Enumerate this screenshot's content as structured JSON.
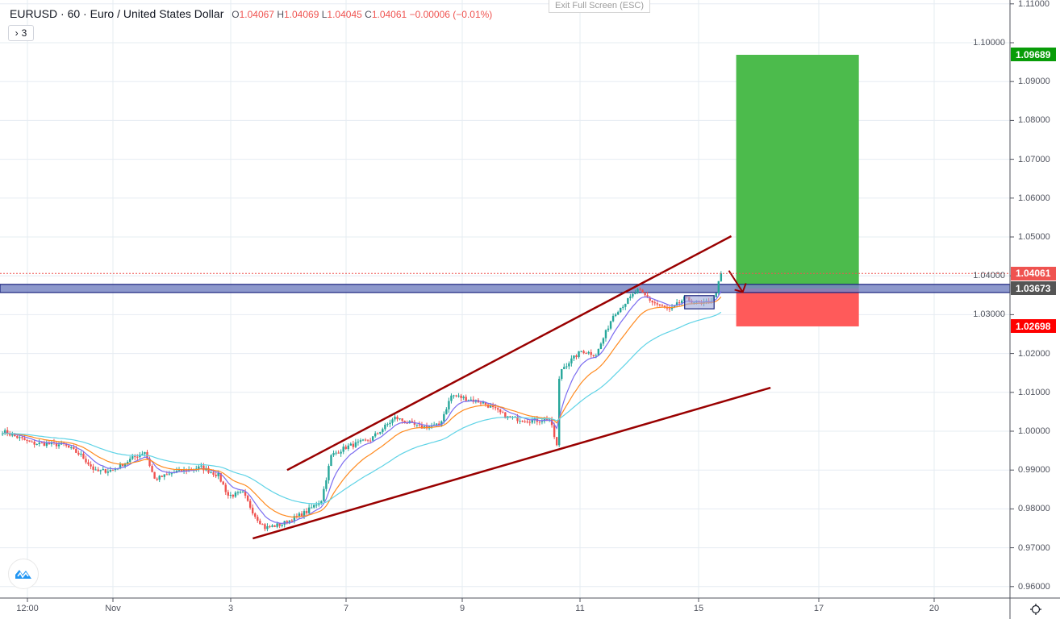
{
  "header": {
    "symbol": "EURUSD",
    "interval": "60",
    "description": "Euro / United States Dollar",
    "title_sep": "·",
    "ohlc": {
      "o_label": "O",
      "o": "1.04067",
      "h_label": "H",
      "h": "1.04069",
      "l_label": "L",
      "l": "1.04045",
      "c_label": "C",
      "c": "1.04061",
      "change": "−0.00006 (−0.01%)"
    },
    "indicators_toggle": {
      "icon": "chevron-right-icon",
      "count": "3"
    }
  },
  "exit_fullscreen_label": "Exit Full Screen (ESC)",
  "colors": {
    "up": "#26a69a",
    "down": "#ef5350",
    "ma_fast": "#7b6cf0",
    "ma_mid": "#ff8a1f",
    "ma_slow": "#5fd3e6",
    "trendline": "#990000",
    "zone_fill": "#7986c3",
    "zone_border": "#1a237e",
    "target": "#4cbb4c",
    "stop": "#ff5a5a",
    "target_label": "#089c08",
    "stop_label": "#ff0000",
    "last_price_label": "#ef5350",
    "zone_label": "#555555"
  },
  "chart_data": {
    "type": "candlestick",
    "symbol": "EURUSD",
    "interval": "60",
    "ylim": [
      0.955,
      1.113
    ],
    "y_ticks": [
      "1.11000",
      "1.10000",
      "1.09000",
      "1.08000",
      "1.07000",
      "1.06000",
      "1.05000",
      "1.04000",
      "1.03000",
      "1.02000",
      "1.01000",
      "1.00000",
      "0.99000",
      "0.98000",
      "0.97000",
      "0.96000"
    ],
    "x_ticks": [
      "12:00",
      "Nov",
      "3",
      "7",
      "9",
      "11",
      "15",
      "17",
      "20"
    ],
    "grid": true,
    "price_path_approx": [
      [
        "10-28 03:00",
        1.0
      ],
      [
        "10-28 15:00",
        0.9969
      ],
      [
        "10-31 04:00",
        0.9965
      ],
      [
        "10-31 11:00",
        0.9938
      ],
      [
        "10-31 17:00",
        0.9896
      ],
      [
        "11-01 00:00",
        0.99
      ],
      [
        "11-01 07:00",
        0.9927
      ],
      [
        "11-01 13:00",
        0.9948
      ],
      [
        "11-01 17:00",
        0.9876
      ],
      [
        "11-02 02:00",
        0.9896
      ],
      [
        "11-02 12:00",
        0.9907
      ],
      [
        "11-02 19:00",
        0.9886
      ],
      [
        "11-02 23:00",
        0.9834
      ],
      [
        "11-03 05:00",
        0.984
      ],
      [
        "11-03 10:00",
        0.9782
      ],
      [
        "11-03 14:00",
        0.9751
      ],
      [
        "11-03 21:00",
        0.9761
      ],
      [
        "11-04 07:00",
        0.9793
      ],
      [
        "11-04 13:00",
        0.9824
      ],
      [
        "11-04 17:00",
        0.9938
      ],
      [
        "11-04 23:00",
        0.9959
      ],
      [
        "11-07 09:00",
        0.9979
      ],
      [
        "11-07 19:00",
        1.0035
      ],
      [
        "11-08 05:00",
        1.001
      ],
      [
        "11-08 13:00",
        1.0015
      ],
      [
        "11-08 18:00",
        1.0093
      ],
      [
        "11-09 07:00",
        1.0073
      ],
      [
        "11-09 17:00",
        1.0035
      ],
      [
        "11-10 03:00",
        1.0027
      ],
      [
        "11-10 10:00",
        1.0031
      ],
      [
        "11-10 13:00",
        0.9959
      ],
      [
        "11-10 14:00",
        1.0156
      ],
      [
        "11-10 23:00",
        1.0207
      ],
      [
        "11-11 05:00",
        1.0197
      ],
      [
        "11-11 12:00",
        1.0301
      ],
      [
        "11-11 22:00",
        1.0363
      ],
      [
        "11-14 04:00",
        1.0332
      ],
      [
        "11-14 11:00",
        1.0311
      ],
      [
        "11-14 17:00",
        1.0342
      ],
      [
        "11-15 00:00",
        1.0326
      ],
      [
        "11-15 05:00",
        1.0342
      ],
      [
        "11-15 08:00",
        1.0406
      ]
    ],
    "moving_averages": [
      "ma_fast",
      "ma_mid",
      "ma_slow"
    ],
    "last_price": "1.04061",
    "drawings": {
      "upper_trendline": [
        [
          "11-03 23:00",
          0.99
        ],
        [
          "11-15 12:00",
          1.0502
        ]
      ],
      "lower_trendline": [
        [
          "11-03 09:00",
          0.9724
        ],
        [
          "11-16 04:00",
          1.0112
        ]
      ],
      "zone": {
        "top": 1.0378,
        "bottom": 1.0357,
        "label": "1.03673"
      },
      "consolidation_box": {
        "from": "11-14 17:00",
        "to": "11-15 05:00",
        "top": 1.0349,
        "bottom": 1.0315
      },
      "long_position": {
        "from": "11-15 14:00",
        "to": "11-17 16:00",
        "entry": 1.03673,
        "target": 1.09689,
        "stop": 1.02698,
        "target_label": "1.09689",
        "stop_label": "1.02698"
      },
      "arrow": [
        [
          "11-15 12:00",
          1.0403
        ],
        [
          "11-15 16:00",
          1.0358
        ]
      ]
    }
  }
}
